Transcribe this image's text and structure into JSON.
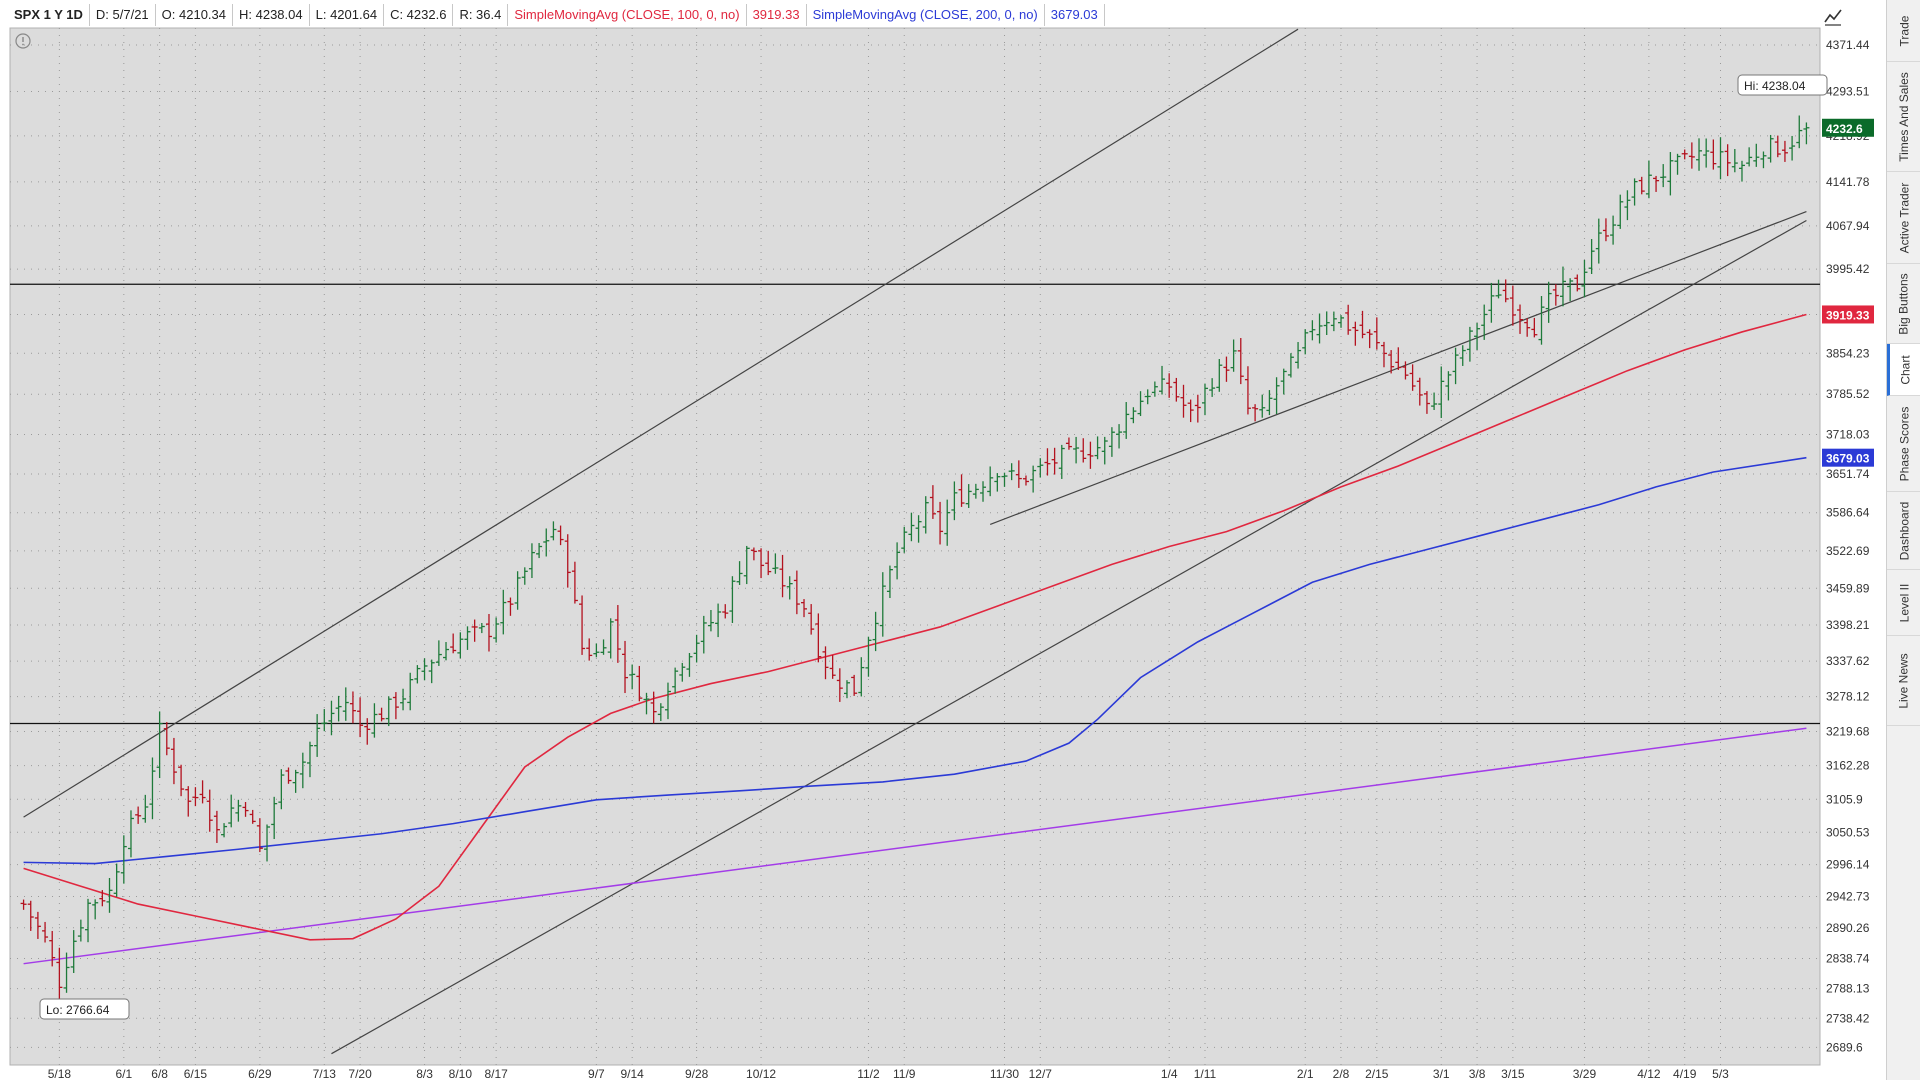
{
  "header": {
    "symbol": "SPX 1 Y 1D",
    "date": "D: 5/7/21",
    "open": "O: 4210.34",
    "high": "H: 4238.04",
    "low": "L: 4201.64",
    "close": "C: 4232.6",
    "range": "R: 36.4",
    "ma100_label": "SimpleMovingAvg (CLOSE, 100, 0, no)",
    "ma100_value": "3919.33",
    "ma200_label": "SimpleMovingAvg (CLOSE, 200, 0, no)",
    "ma200_value": "3679.03"
  },
  "sidebar": {
    "tabs": [
      "Trade",
      "Times And Sales",
      "Active Trader",
      "Big Buttons",
      "Chart",
      "Phase Scores",
      "Dashboard",
      "Level II",
      "Live News"
    ],
    "active": "Chart"
  },
  "colors": {
    "up_bar": "#1e7a3a",
    "down_bar": "#b3121f",
    "ma100": "#e0273f",
    "ma200": "#2b3ad6",
    "trend_purple": "#a33ce8",
    "channel": "#444444",
    "plot_bg": "#dcdcdc"
  },
  "chart_data": {
    "type": "ohlc",
    "ylim": [
      2660,
      4400
    ],
    "y_ticks": [
      "4371.44",
      "4293.51",
      "4218.92",
      "4141.78",
      "4067.94",
      "3995.42",
      "3919.33",
      "3854.23",
      "3785.52",
      "3718.03",
      "3651.74",
      "3586.64",
      "3522.69",
      "3459.89",
      "3398.21",
      "3337.62",
      "3278.12",
      "3219.68",
      "3162.28",
      "3105.9",
      "3050.53",
      "2996.14",
      "2942.73",
      "2890.26",
      "2838.74",
      "2788.13",
      "2738.42",
      "2689.6"
    ],
    "x_labels": [
      "5/18",
      "6/1",
      "6/8",
      "6/15",
      "6/29",
      "7/13",
      "7/20",
      "8/3",
      "8/10",
      "8/17",
      "9/7",
      "9/14",
      "9/28",
      "10/12",
      "11/2",
      "11/9",
      "11/30",
      "12/7",
      "1/4",
      "1/11",
      "2/1",
      "2/8",
      "2/15",
      "3/1",
      "3/8",
      "3/15",
      "3/29",
      "4/12",
      "4/19",
      "5/3"
    ],
    "x_label_days": [
      5,
      14,
      19,
      24,
      33,
      42,
      47,
      56,
      61,
      66,
      80,
      85,
      94,
      103,
      118,
      123,
      137,
      142,
      160,
      165,
      179,
      184,
      189,
      198,
      203,
      208,
      218,
      227,
      232,
      237
    ],
    "num_days": 250,
    "hi_label": "Hi: 4238.04",
    "lo_label": "Lo: 2766.64",
    "last_price": "4232.6",
    "last_price_value": 4232.6,
    "ma100_tag": "3919.33",
    "ma100_tag_value": 3919.33,
    "ma200_tag": "3679.03",
    "ma200_tag_value": 3679.03,
    "horizontal_levels": [
      3970,
      3233
    ],
    "close_anchors": [
      [
        0,
        2930
      ],
      [
        3,
        2870
      ],
      [
        5,
        2800
      ],
      [
        7,
        2870
      ],
      [
        9,
        2930
      ],
      [
        12,
        2950
      ],
      [
        14,
        3040
      ],
      [
        17,
        3100
      ],
      [
        19,
        3220
      ],
      [
        21,
        3160
      ],
      [
        23,
        3100
      ],
      [
        25,
        3120
      ],
      [
        27,
        3050
      ],
      [
        29,
        3090
      ],
      [
        31,
        3100
      ],
      [
        33,
        3020
      ],
      [
        36,
        3140
      ],
      [
        39,
        3170
      ],
      [
        41,
        3220
      ],
      [
        43,
        3250
      ],
      [
        45,
        3270
      ],
      [
        47,
        3230
      ],
      [
        50,
        3250
      ],
      [
        53,
        3280
      ],
      [
        56,
        3330
      ],
      [
        59,
        3360
      ],
      [
        62,
        3380
      ],
      [
        65,
        3390
      ],
      [
        68,
        3440
      ],
      [
        71,
        3510
      ],
      [
        74,
        3560
      ],
      [
        76,
        3500
      ],
      [
        78,
        3360
      ],
      [
        80,
        3350
      ],
      [
        82,
        3400
      ],
      [
        84,
        3320
      ],
      [
        86,
        3290
      ],
      [
        88,
        3250
      ],
      [
        90,
        3300
      ],
      [
        92,
        3340
      ],
      [
        95,
        3390
      ],
      [
        98,
        3430
      ],
      [
        101,
        3530
      ],
      [
        103,
        3500
      ],
      [
        106,
        3470
      ],
      [
        109,
        3430
      ],
      [
        111,
        3360
      ],
      [
        113,
        3310
      ],
      [
        116,
        3290
      ],
      [
        118,
        3380
      ],
      [
        120,
        3450
      ],
      [
        122,
        3520
      ],
      [
        124,
        3560
      ],
      [
        126,
        3590
      ],
      [
        128,
        3560
      ],
      [
        130,
        3610
      ],
      [
        133,
        3630
      ],
      [
        136,
        3660
      ],
      [
        139,
        3640
      ],
      [
        142,
        3660
      ],
      [
        145,
        3680
      ],
      [
        148,
        3690
      ],
      [
        151,
        3700
      ],
      [
        154,
        3750
      ],
      [
        157,
        3790
      ],
      [
        160,
        3800
      ],
      [
        163,
        3750
      ],
      [
        166,
        3810
      ],
      [
        169,
        3850
      ],
      [
        171,
        3760
      ],
      [
        173,
        3750
      ],
      [
        175,
        3800
      ],
      [
        178,
        3850
      ],
      [
        180,
        3900
      ],
      [
        183,
        3920
      ],
      [
        185,
        3900
      ],
      [
        188,
        3880
      ],
      [
        191,
        3840
      ],
      [
        193,
        3820
      ],
      [
        196,
        3760
      ],
      [
        198,
        3800
      ],
      [
        200,
        3840
      ],
      [
        203,
        3900
      ],
      [
        206,
        3960
      ],
      [
        209,
        3920
      ],
      [
        211,
        3900
      ],
      [
        213,
        3940
      ],
      [
        215,
        3960
      ],
      [
        217,
        3970
      ],
      [
        219,
        4030
      ],
      [
        222,
        4080
      ],
      [
        225,
        4130
      ],
      [
        228,
        4150
      ],
      [
        231,
        4170
      ],
      [
        234,
        4190
      ],
      [
        237,
        4180
      ],
      [
        240,
        4170
      ],
      [
        243,
        4200
      ],
      [
        246,
        4200
      ],
      [
        249,
        4232.6
      ]
    ],
    "ma100_points": [
      [
        0,
        2990
      ],
      [
        8,
        2960
      ],
      [
        16,
        2930
      ],
      [
        24,
        2910
      ],
      [
        32,
        2890
      ],
      [
        40,
        2870
      ],
      [
        46,
        2872
      ],
      [
        52,
        2905
      ],
      [
        58,
        2960
      ],
      [
        64,
        3060
      ],
      [
        70,
        3160
      ],
      [
        76,
        3210
      ],
      [
        82,
        3250
      ],
      [
        88,
        3275
      ],
      [
        96,
        3300
      ],
      [
        104,
        3320
      ],
      [
        112,
        3345
      ],
      [
        120,
        3370
      ],
      [
        128,
        3395
      ],
      [
        136,
        3430
      ],
      [
        144,
        3465
      ],
      [
        152,
        3500
      ],
      [
        160,
        3530
      ],
      [
        168,
        3555
      ],
      [
        176,
        3590
      ],
      [
        184,
        3630
      ],
      [
        192,
        3665
      ],
      [
        200,
        3705
      ],
      [
        208,
        3745
      ],
      [
        216,
        3785
      ],
      [
        224,
        3825
      ],
      [
        232,
        3860
      ],
      [
        240,
        3890
      ],
      [
        249,
        3919.33
      ]
    ],
    "ma200_points": [
      [
        0,
        3000
      ],
      [
        10,
        2998
      ],
      [
        20,
        3010
      ],
      [
        30,
        3022
      ],
      [
        40,
        3035
      ],
      [
        50,
        3048
      ],
      [
        60,
        3065
      ],
      [
        70,
        3085
      ],
      [
        80,
        3105
      ],
      [
        90,
        3113
      ],
      [
        100,
        3120
      ],
      [
        110,
        3128
      ],
      [
        120,
        3135
      ],
      [
        130,
        3148
      ],
      [
        140,
        3170
      ],
      [
        146,
        3200
      ],
      [
        150,
        3240
      ],
      [
        156,
        3310
      ],
      [
        164,
        3370
      ],
      [
        172,
        3420
      ],
      [
        180,
        3470
      ],
      [
        188,
        3500
      ],
      [
        196,
        3525
      ],
      [
        204,
        3550
      ],
      [
        212,
        3575
      ],
      [
        220,
        3600
      ],
      [
        228,
        3630
      ],
      [
        236,
        3655
      ],
      [
        249,
        3679.03
      ]
    ],
    "trend_purple": [
      [
        0,
        2830
      ],
      [
        249,
        3225
      ]
    ],
    "trendlines": [
      [
        [
          0,
          3076
        ],
        [
          178,
          4398
        ]
      ],
      [
        [
          43,
          2679
        ],
        [
          249,
          4077
        ]
      ],
      [
        [
          135,
          3567
        ],
        [
          249,
          4092
        ]
      ]
    ]
  }
}
